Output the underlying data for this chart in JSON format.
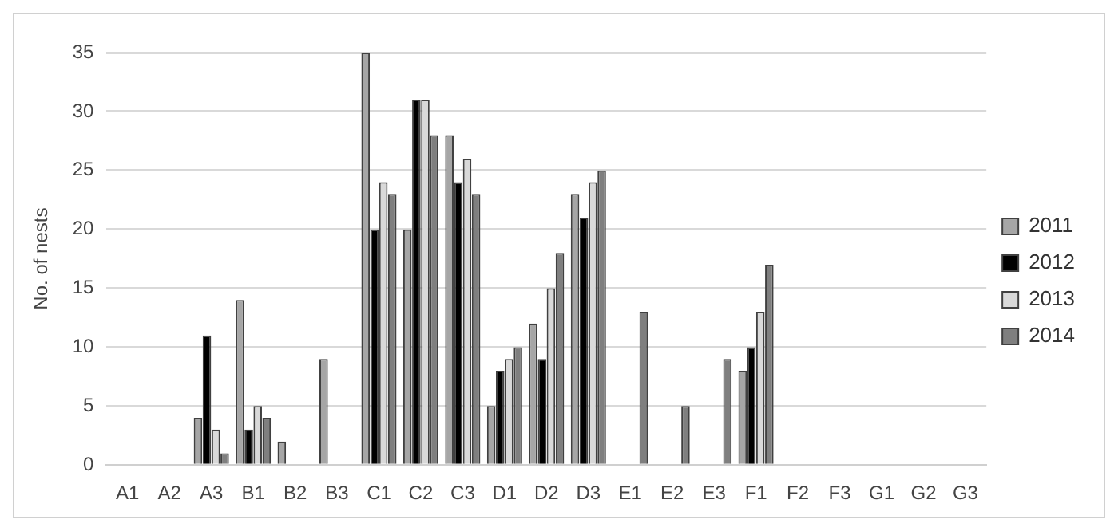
{
  "chart_data": {
    "type": "bar",
    "ylabel": "No. of nests",
    "categories": [
      "A1",
      "A2",
      "A3",
      "B1",
      "B2",
      "B3",
      "C1",
      "C2",
      "C3",
      "D1",
      "D2",
      "D3",
      "E1",
      "E2",
      "E3",
      "F1",
      "F2",
      "F3",
      "G1",
      "G2",
      "G3"
    ],
    "series": [
      {
        "name": "2011",
        "color": "#a6a6a6",
        "values": [
          0,
          0,
          4,
          14,
          2,
          9,
          35,
          20,
          28,
          5,
          12,
          23,
          0,
          0,
          0,
          8,
          0,
          0,
          0,
          0,
          0
        ]
      },
      {
        "name": "2012",
        "color": "#000000",
        "values": [
          0,
          0,
          11,
          3,
          0,
          0,
          20,
          31,
          24,
          8,
          9,
          21,
          0,
          0,
          0,
          10,
          0,
          0,
          0,
          0,
          0
        ]
      },
      {
        "name": "2013",
        "color": "#d9d9d9",
        "values": [
          0,
          0,
          3,
          5,
          0,
          0,
          24,
          31,
          26,
          9,
          15,
          24,
          0,
          0,
          0,
          13,
          0,
          0,
          0,
          0,
          0
        ]
      },
      {
        "name": "2014",
        "color": "#7f7f7f",
        "values": [
          0,
          0,
          1,
          4,
          0,
          0,
          23,
          28,
          23,
          10,
          18,
          25,
          13,
          5,
          9,
          17,
          0,
          0,
          0,
          0,
          0
        ]
      }
    ],
    "ylim": [
      0,
      35
    ],
    "yticks": [
      0,
      5,
      10,
      15,
      20,
      25,
      30,
      35
    ],
    "grid": "y",
    "legend": "right"
  }
}
